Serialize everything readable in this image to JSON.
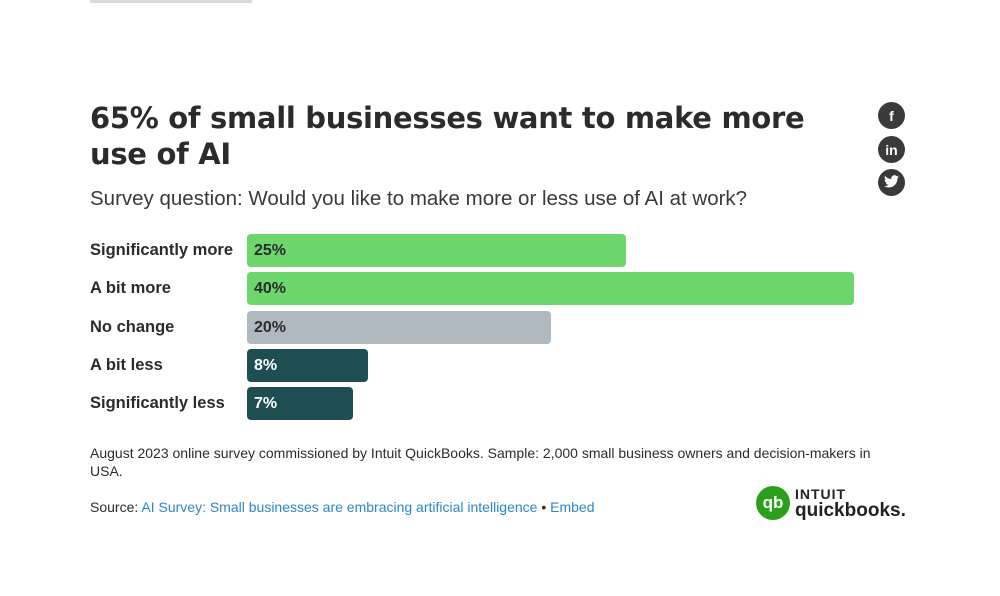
{
  "chart_data": {
    "type": "bar",
    "orientation": "horizontal",
    "title": "65% of small businesses want to make more use of AI",
    "subtitle": "Survey question: Would you like to make more or less use of AI at work?",
    "categories": [
      "Significantly more",
      "A bit more",
      "No change",
      "A bit less",
      "Significantly less"
    ],
    "values": [
      25,
      40,
      20,
      8,
      7
    ],
    "value_labels": [
      "25%",
      "40%",
      "20%",
      "8%",
      "7%"
    ],
    "colors": [
      "#6dd66c",
      "#6dd66c",
      "#b0b9bf",
      "#1f4e52",
      "#1f4e52"
    ],
    "label_colors": [
      "#2b2b2b",
      "#2b2b2b",
      "#2b2b2b",
      "#ffffff",
      "#ffffff"
    ],
    "grid": false
  },
  "note": "August 2023 online survey commissioned by Intuit QuickBooks. Sample: 2,000 small business owners and decision-makers in USA.",
  "source": {
    "prefix": "Source: ",
    "link": "AI Survey: Small businesses are embracing artificial intelligence",
    "sep": " • ",
    "embed": "Embed"
  },
  "social": [
    {
      "icon": "facebook-icon",
      "glyph": "f"
    },
    {
      "icon": "linkedin-icon",
      "glyph": "in"
    },
    {
      "icon": "twitter-icon",
      "glyph": "t"
    }
  ],
  "logo": {
    "mark": "qb",
    "line1": "INTUIT",
    "line2": "quickbooks."
  }
}
